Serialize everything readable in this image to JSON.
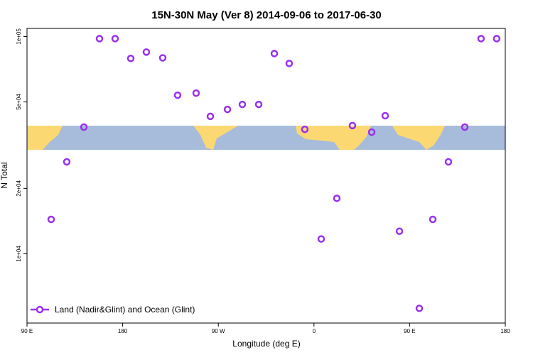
{
  "chart_data": {
    "type": "scatter",
    "title": "15N-30N May (Ver 8)   2014-09-06 to 2017-06-30",
    "x_label": "Longitude (deg E)",
    "y_label": "N Total",
    "log_y": true,
    "legend": "bottom-left",
    "xlim": [
      90,
      540
    ],
    "ylim": [
      4800,
      109000
    ],
    "xticks": [
      {
        "value": 90,
        "label": "90 E"
      },
      180,
      {
        "value": 270,
        "label": "90 W"
      },
      {
        "value": 360,
        "label": "0"
      },
      {
        "value": 450,
        "label": "90 E"
      },
      {
        "value": 540,
        "label": "180"
      }
    ],
    "yticks": [
      {
        "value": 10000,
        "label": "1e+04"
      },
      {
        "value": 20000,
        "label": "2e+04"
      },
      {
        "value": 50000,
        "label": "5e+04"
      },
      {
        "value": 100000,
        "label": "1e+05"
      }
    ],
    "series": [
      {
        "name": "Land (Nadir&Glint) and Ocean (Glint)",
        "color": "#9b30f0",
        "x": [
          112.7,
          127.4,
          143.5,
          158.2,
          172.9,
          187.6,
          202.3,
          217.7,
          231.7,
          249.1,
          262.5,
          278.6,
          292.6,
          308.0,
          322.7,
          336.7,
          351.4,
          366.8,
          381.5,
          396.2,
          414.3,
          427.0,
          440.4,
          459.1,
          471.8,
          486.5,
          501.9,
          517.2,
          531.9
        ],
        "values": [
          14400,
          26500,
          38300,
          97800,
          97800,
          79300,
          84800,
          79800,
          53700,
          54900,
          42900,
          46200,
          48700,
          48700,
          83500,
          75200,
          37400,
          11700,
          18000,
          38900,
          36300,
          43200,
          12700,
          5610,
          14400,
          26500,
          38300,
          97800,
          97800
        ]
      }
    ]
  }
}
